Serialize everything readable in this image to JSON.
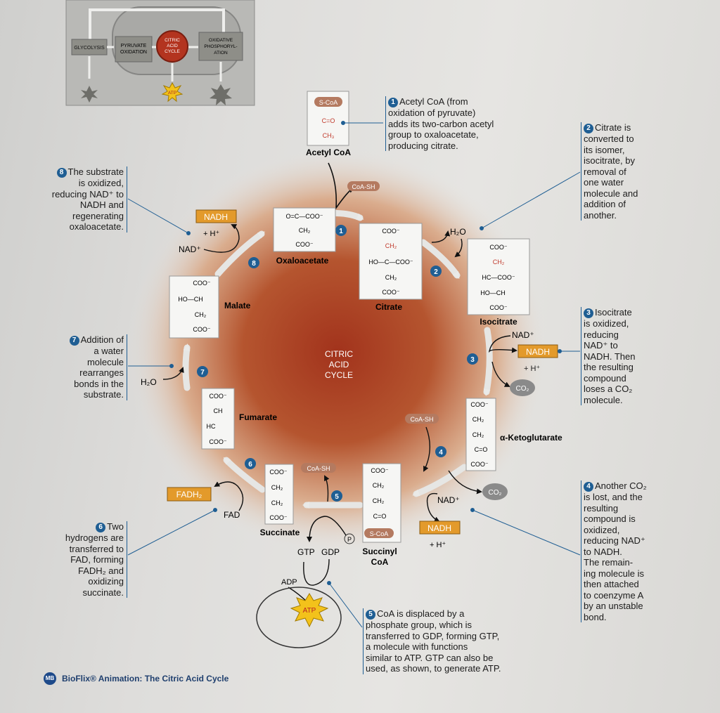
{
  "overview": {
    "glycolysis": "GLYCOLYSIS",
    "pyruvate_oxidation": [
      "PYRUVATE",
      "OXIDATION"
    ],
    "citric_acid_cycle": [
      "CITRIC",
      "ACID",
      "CYCLE"
    ],
    "oxidative_phosphorylation": [
      "OXIDATIVE",
      "PHOSPHORYL-",
      "ATION"
    ],
    "atp": "ATP"
  },
  "center_label": [
    "CITRIC",
    "ACID",
    "CYCLE"
  ],
  "acetyl_coa": {
    "name": "Acetyl CoA",
    "scoa": "S-CoA",
    "rows": [
      "C=O",
      "CH₃"
    ]
  },
  "oxaloacetate": {
    "name": "Oxaloacetate",
    "rows": [
      "O=C—COO⁻",
      "CH₂",
      "COO⁻"
    ]
  },
  "citrate": {
    "name": "Citrate",
    "rows": [
      "COO⁻",
      "CH₂",
      "HO—C—COO⁻",
      "CH₂",
      "COO⁻"
    ]
  },
  "isocitrate": {
    "name": "Isocitrate",
    "rows": [
      "COO⁻",
      "CH₂",
      "HC—COO⁻",
      "HO—CH",
      "COO⁻"
    ]
  },
  "alpha_ketoglutarate": {
    "name": "α-Ketoglutarate",
    "rows": [
      "COO⁻",
      "CH₂",
      "CH₂",
      "C=O",
      "COO⁻"
    ]
  },
  "succinyl_coa": {
    "name": [
      "Succinyl",
      "CoA"
    ],
    "rows": [
      "COO⁻",
      "CH₂",
      "CH₂",
      "C=O"
    ],
    "scoa": "S-CoA"
  },
  "succinate": {
    "name": "Succinate",
    "rows": [
      "COO⁻",
      "CH₂",
      "CH₂",
      "COO⁻"
    ]
  },
  "fumarate": {
    "name": "Fumarate",
    "rows": [
      "COO⁻",
      "CH",
      "HC",
      "COO⁻"
    ]
  },
  "malate": {
    "name": "Malate",
    "rows": [
      "COO⁻",
      "HO—CH",
      "CH₂",
      "COO⁻"
    ]
  },
  "inputs": {
    "coa_sh_1": "CoA-SH",
    "coa_sh_2": "CoA-SH",
    "coa_sh_3": "CoA-SH",
    "h2o_1": "H₂O",
    "h2o_2": "H₂O",
    "nad_3": "NAD⁺",
    "nadh_3": "NADH",
    "h_3": "+ H⁺",
    "co2_3": "CO₂",
    "nad_4": "NAD⁺",
    "nadh_4": "NADH",
    "h_4": "+ H⁺",
    "co2_4": "CO₂",
    "fad": "FAD",
    "fadh2": "FADH₂",
    "gtp": "GTP",
    "gdp": "GDP",
    "adp": "ADP",
    "atp": "ATP",
    "p": "P",
    "nad_8": "NAD⁺",
    "nadh_8": "NADH",
    "h_8": "+ H⁺"
  },
  "step_numbers": [
    "1",
    "2",
    "3",
    "4",
    "5",
    "6",
    "7",
    "8"
  ],
  "captions": {
    "c1": "Acetyl CoA (from\noxidation of pyruvate)\nadds its two-carbon acetyl\ngroup to oxaloacetate,\nproducing citrate.",
    "c2": "Citrate is\nconverted to\nits isomer,\nisocitrate, by\nremoval of\none water\nmolecule and\naddition of\nanother.",
    "c3": "Isocitrate\nis oxidized,\nreducing\nNAD⁺ to\nNADH. Then\nthe resulting\ncompound\nloses a CO₂\nmolecule.",
    "c4": "Another CO₂\nis lost, and the\nresulting\ncompound is\noxidized,\nreducing NAD⁺\nto NADH.\nThe remain-\ning molecule is\nthen attached\nto coenzyme A\nby an unstable\nbond.",
    "c5": "CoA is displaced by a\nphosphate group, which is\ntransferred to GDP, forming GTP,\na molecule with functions\nsimilar to ATP. GTP can also be\nused, as shown, to generate ATP.",
    "c6": "Two\nhydrogens are\ntransferred to\nFAD, forming\nFADH₂ and\noxidizing\nsuccinate.",
    "c7": "Addition of\na water\nmolecule\nrearranges\nbonds in the\nsubstrate.",
    "c8": "The substrate\nis oxidized,\nreducing NAD⁺ to\nNADH and\nregenerating\noxaloacetate."
  },
  "footer": {
    "badge": "MB",
    "text": "BioFlix® Animation: The Citric Acid Cycle"
  },
  "colors": {
    "arrow": "#e6e6e4",
    "step_badge": "#1f5e93",
    "nadh_box": "#e39a2b",
    "coa_pill": "#b47a60",
    "co2_circle": "#8a8a8a",
    "overview_red": "#b3341f",
    "atp_star": "#f3c21b",
    "caption_line": "#1f5e93"
  }
}
